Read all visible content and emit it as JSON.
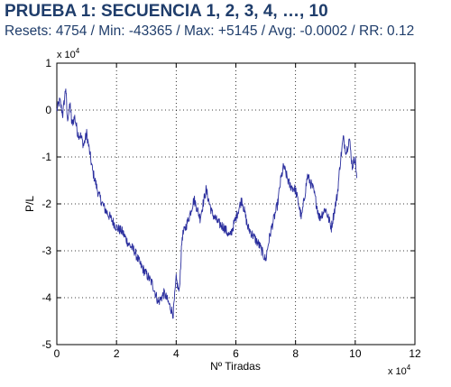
{
  "header": {
    "title": "PRUEBA 1: SECUENCIA 1, 2, 3, 4, …, 10",
    "stats": "Resets: 4754 / Min: -43365 / Max: +5145 / Avg: -0.0002 / RR: 0.12"
  },
  "chart_data": {
    "type": "line",
    "xlabel": "Nº Tiradas",
    "ylabel": "P/L",
    "x_multiplier": "x 10",
    "x_multiplier_exp": "4",
    "y_multiplier": "x 10",
    "y_multiplier_exp": "4",
    "xlim": [
      0,
      12
    ],
    "ylim": [
      -5,
      1
    ],
    "x_ticks": [
      0,
      2,
      4,
      6,
      8,
      10,
      12
    ],
    "y_ticks": [
      1,
      0,
      -1,
      -2,
      -3,
      -4,
      -5
    ],
    "x_tick_labels": [
      "0",
      "2",
      "4",
      "6",
      "8",
      "10",
      "12"
    ],
    "y_tick_labels": [
      "1",
      "0",
      "-1",
      "-2",
      "-3",
      "-4",
      "-5"
    ],
    "grid": true,
    "series_color": "#2b2f9e",
    "series": [
      {
        "x": [
          0,
          0.1,
          0.2,
          0.3,
          0.35,
          0.45,
          0.5,
          0.6,
          0.7,
          0.8,
          0.9,
          1.0,
          1.1,
          1.2,
          1.4,
          1.6,
          1.8,
          2.0,
          2.2,
          2.4,
          2.6,
          2.8,
          3.0,
          3.2,
          3.4,
          3.6,
          3.8,
          3.9,
          4.0,
          4.1,
          4.2,
          4.4,
          4.6,
          4.8,
          5.0,
          5.2,
          5.4,
          5.6,
          5.8,
          6.0,
          6.2,
          6.4,
          6.6,
          6.8,
          7.0,
          7.1,
          7.2,
          7.4,
          7.5,
          7.6,
          7.8,
          8.0,
          8.2,
          8.4,
          8.6,
          8.8,
          9.0,
          9.2,
          9.4,
          9.5,
          9.6,
          9.7,
          9.8,
          9.9,
          10.0,
          10.05
        ],
        "y": [
          0,
          0.2,
          -0.1,
          0.5,
          -0.2,
          0.1,
          -0.3,
          -0.15,
          -0.5,
          -0.55,
          -0.75,
          -0.5,
          -0.9,
          -1.3,
          -1.8,
          -2.1,
          -2.3,
          -2.5,
          -2.6,
          -2.85,
          -3.0,
          -3.3,
          -3.5,
          -3.7,
          -4.1,
          -3.9,
          -4.2,
          -4.35,
          -3.6,
          -3.9,
          -2.7,
          -2.35,
          -1.9,
          -2.3,
          -1.7,
          -2.2,
          -2.4,
          -2.5,
          -2.7,
          -2.3,
          -1.9,
          -2.5,
          -2.7,
          -2.9,
          -3.2,
          -2.8,
          -2.5,
          -2.0,
          -1.5,
          -1.2,
          -1.6,
          -1.7,
          -2.3,
          -1.4,
          -1.7,
          -2.3,
          -2.1,
          -2.5,
          -1.8,
          -1.1,
          -0.6,
          -0.9,
          -0.6,
          -1.2,
          -1.0,
          -1.45
        ]
      }
    ]
  }
}
